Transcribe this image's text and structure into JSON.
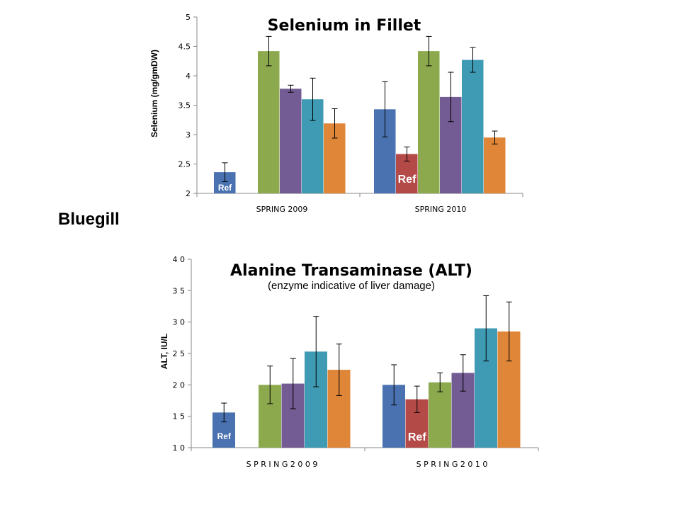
{
  "side_label": "Bluegill",
  "series_colors": [
    "#4a72b0",
    "#b44a47",
    "#8ca94e",
    "#735b93",
    "#3f9ab3",
    "#df8639"
  ],
  "chart_data": [
    {
      "type": "bar",
      "title": "Selenium in Fillet",
      "subtitle": "",
      "ylabel": "Selenium (mg/gmDW)",
      "ylim": [
        2,
        5
      ],
      "yticks": [
        2,
        2.5,
        3,
        3.5,
        4,
        4.5,
        5
      ],
      "ytick_labels": [
        "2",
        "2.5",
        "3",
        "3.5",
        "4",
        "4.5",
        "5"
      ],
      "categories": [
        "SPRING 2009",
        "SPRING 2010"
      ],
      "groups": [
        {
          "values": [
            2.36,
            null,
            4.42,
            3.78,
            3.6,
            3.19
          ],
          "errors": [
            0.16,
            null,
            0.25,
            0.06,
            0.36,
            0.25
          ]
        },
        {
          "values": [
            3.43,
            2.67,
            4.42,
            3.64,
            4.27,
            2.95
          ],
          "errors": [
            0.47,
            0.12,
            0.25,
            0.42,
            0.21,
            0.11
          ]
        }
      ],
      "annotations": [
        {
          "text": "Ref",
          "group": 0,
          "series": 0
        },
        {
          "text": "Ref",
          "group": 1,
          "series": 1
        }
      ],
      "grid": false
    },
    {
      "type": "bar",
      "title": "Alanine Transaminase (ALT)",
      "subtitle": "(enzyme indicative of liver damage)",
      "ylabel": "ALT, IU/L",
      "ylim": [
        10,
        40
      ],
      "yticks": [
        10,
        15,
        20,
        25,
        30,
        35,
        40
      ],
      "ytick_labels": [
        "1 0",
        "1 5",
        "2 0",
        "2 5",
        "3 0",
        "3 5",
        "4 0"
      ],
      "categories": [
        "S P R I N G  2 0 0 9",
        "S P R I N G  2 0 1 0"
      ],
      "groups": [
        {
          "values": [
            15.6,
            null,
            20.0,
            20.2,
            25.3,
            22.4
          ],
          "errors": [
            1.5,
            null,
            3.0,
            4.0,
            5.6,
            4.1
          ]
        },
        {
          "values": [
            20.0,
            17.7,
            20.4,
            21.9,
            29.0,
            28.5
          ],
          "errors": [
            3.2,
            2.1,
            1.5,
            2.9,
            5.2,
            4.7
          ]
        }
      ],
      "annotations": [
        {
          "text": "Ref",
          "group": 0,
          "series": 0
        },
        {
          "text": "Ref",
          "group": 1,
          "series": 1
        }
      ],
      "grid": false
    }
  ]
}
